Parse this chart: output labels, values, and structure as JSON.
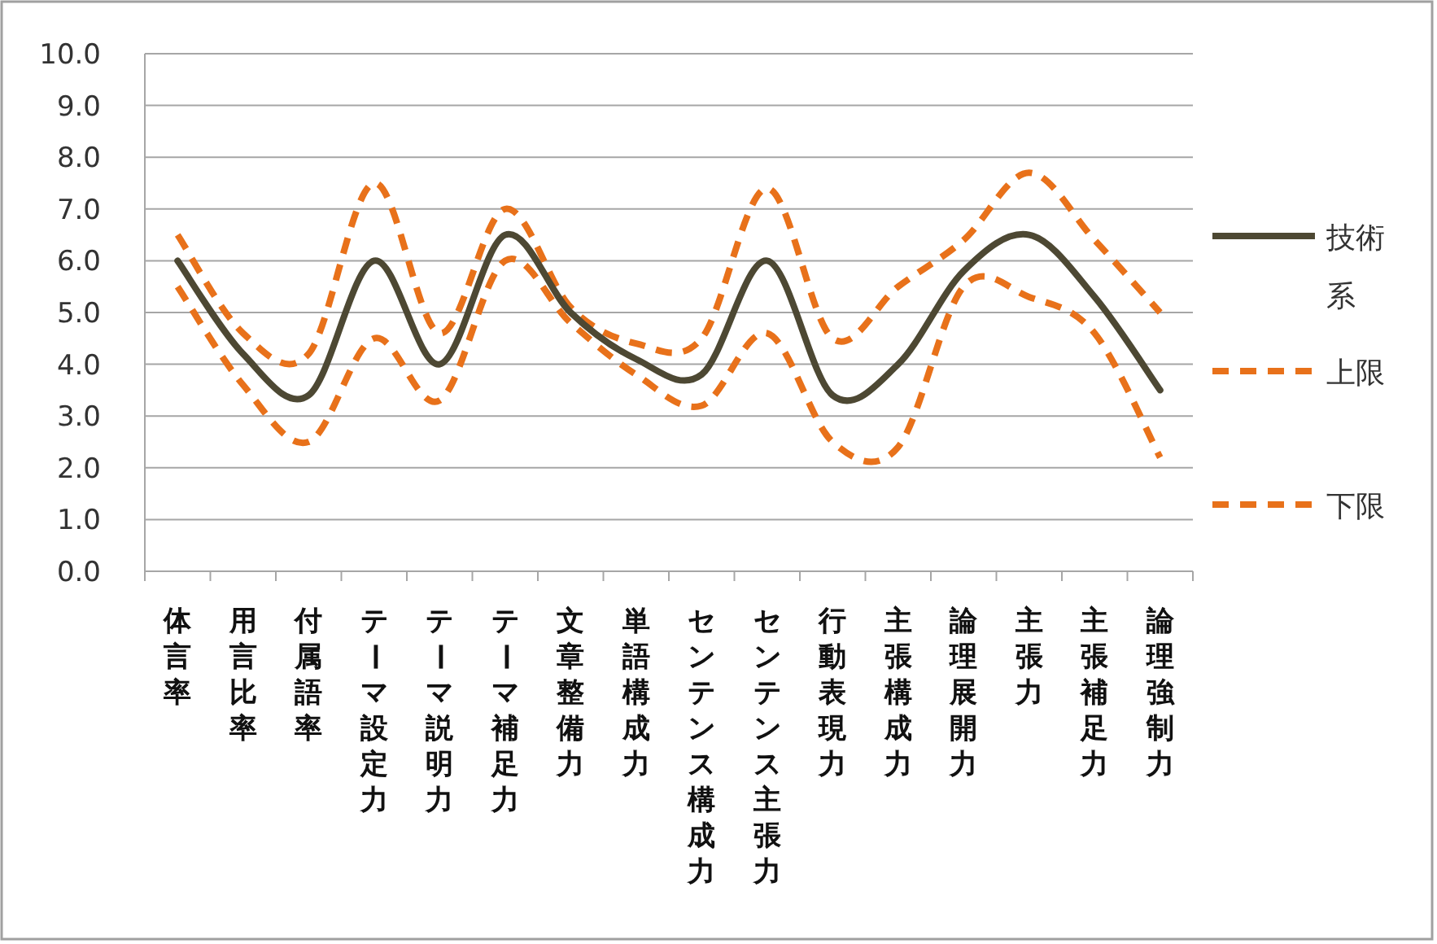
{
  "chart_data": {
    "type": "line",
    "categories": [
      "体言率",
      "用言比率",
      "付属語率",
      "テーマ設定力",
      "テーマ説明力",
      "テーマ補足力",
      "文章整備力",
      "単語構成力",
      "センテンス構成力",
      "センテンス主張力",
      "行動表現力",
      "主張構成力",
      "論理展開力",
      "主張力",
      "主張補足力",
      "論理強制力"
    ],
    "series": [
      {
        "name": "技術系",
        "color": "#4d4833",
        "line_style": "solid",
        "values": [
          6.0,
          4.2,
          3.4,
          6.0,
          4.0,
          6.5,
          5.0,
          4.1,
          3.8,
          6.0,
          3.4,
          4.0,
          5.8,
          6.5,
          5.3,
          3.5
        ]
      },
      {
        "name": "上限",
        "color": "#e8711a",
        "line_style": "dashed",
        "values": [
          6.5,
          4.6,
          4.2,
          7.5,
          4.6,
          7.0,
          5.1,
          4.4,
          4.5,
          7.4,
          4.5,
          5.5,
          6.4,
          7.7,
          6.4,
          5.0
        ]
      },
      {
        "name": "下限",
        "color": "#e8711a",
        "line_style": "dashed",
        "values": [
          5.5,
          3.6,
          2.5,
          4.5,
          3.3,
          6.0,
          4.8,
          3.8,
          3.2,
          4.6,
          2.5,
          2.4,
          5.5,
          5.3,
          4.6,
          2.2
        ]
      }
    ],
    "ylim": [
      0,
      10
    ],
    "yticks": [
      {
        "value": 0,
        "label": "0.0"
      },
      {
        "value": 1,
        "label": "1.0"
      },
      {
        "value": 2,
        "label": "2.0"
      },
      {
        "value": 3,
        "label": "3.0"
      },
      {
        "value": 4,
        "label": "4.0"
      },
      {
        "value": 5,
        "label": "5.0"
      },
      {
        "value": 6,
        "label": "6.0"
      },
      {
        "value": 7,
        "label": "7.0"
      },
      {
        "value": 8,
        "label": "8.0"
      },
      {
        "value": 9,
        "label": "9.0"
      },
      {
        "value": 10,
        "label": "10.0"
      }
    ],
    "grid": "y",
    "legend": "right",
    "marker": "none"
  }
}
